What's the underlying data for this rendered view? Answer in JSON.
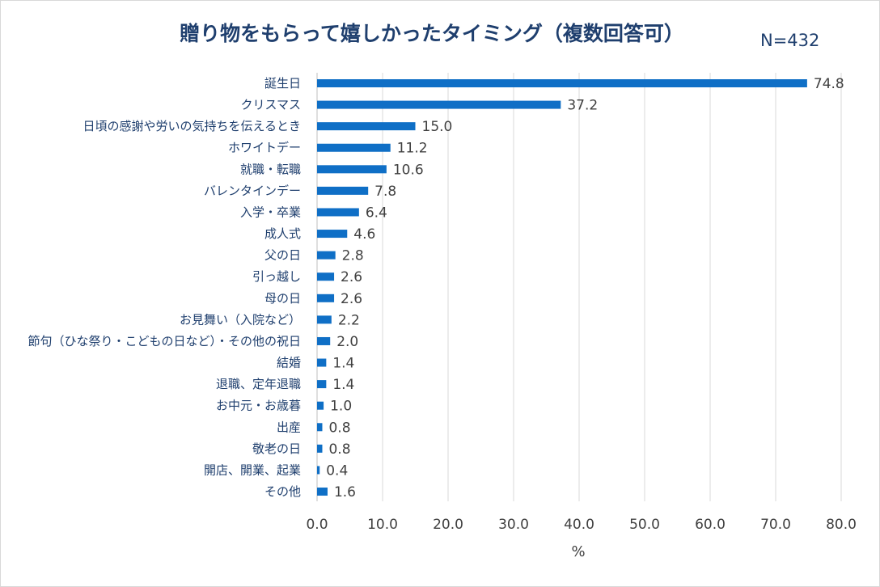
{
  "chart_data": {
    "type": "bar",
    "orientation": "horizontal",
    "title": "贈り物をもらって嬉しかったタイミング（複数回答可）",
    "annotation": "N=432",
    "xlabel": "%",
    "ylabel": "",
    "xlim": [
      0,
      80
    ],
    "xticks": [
      "0.0",
      "10.0",
      "20.0",
      "30.0",
      "40.0",
      "50.0",
      "60.0",
      "70.0",
      "80.0"
    ],
    "grid": true,
    "bar_color": "#0f6fc6",
    "categories": [
      "誕生日",
      "クリスマス",
      "日頃の感謝や労いの気持ちを伝えるとき",
      "ホワイトデー",
      "就職・転職",
      "バレンタインデー",
      "入学・卒業",
      "成人式",
      "父の日",
      "引っ越し",
      "母の日",
      "お見舞い（入院など）",
      "節句（ひな祭り・こどもの日など）・その他の祝日",
      "結婚",
      "退職、定年退職",
      "お中元・お歳暮",
      "出産",
      "敬老の日",
      "開店、開業、起業",
      "その他"
    ],
    "values": [
      74.8,
      37.2,
      15.0,
      11.2,
      10.6,
      7.8,
      6.4,
      4.6,
      2.8,
      2.6,
      2.6,
      2.2,
      2.0,
      1.4,
      1.4,
      1.0,
      0.8,
      0.8,
      0.4,
      1.6
    ],
    "value_labels": [
      "74.8",
      "37.2",
      "15.0",
      "11.2",
      "10.6",
      "7.8",
      "6.4",
      "4.6",
      "2.8",
      "2.6",
      "2.6",
      "2.2",
      "2.0",
      "1.4",
      "1.4",
      "1.0",
      "0.8",
      "0.8",
      "0.4",
      "1.6"
    ]
  }
}
